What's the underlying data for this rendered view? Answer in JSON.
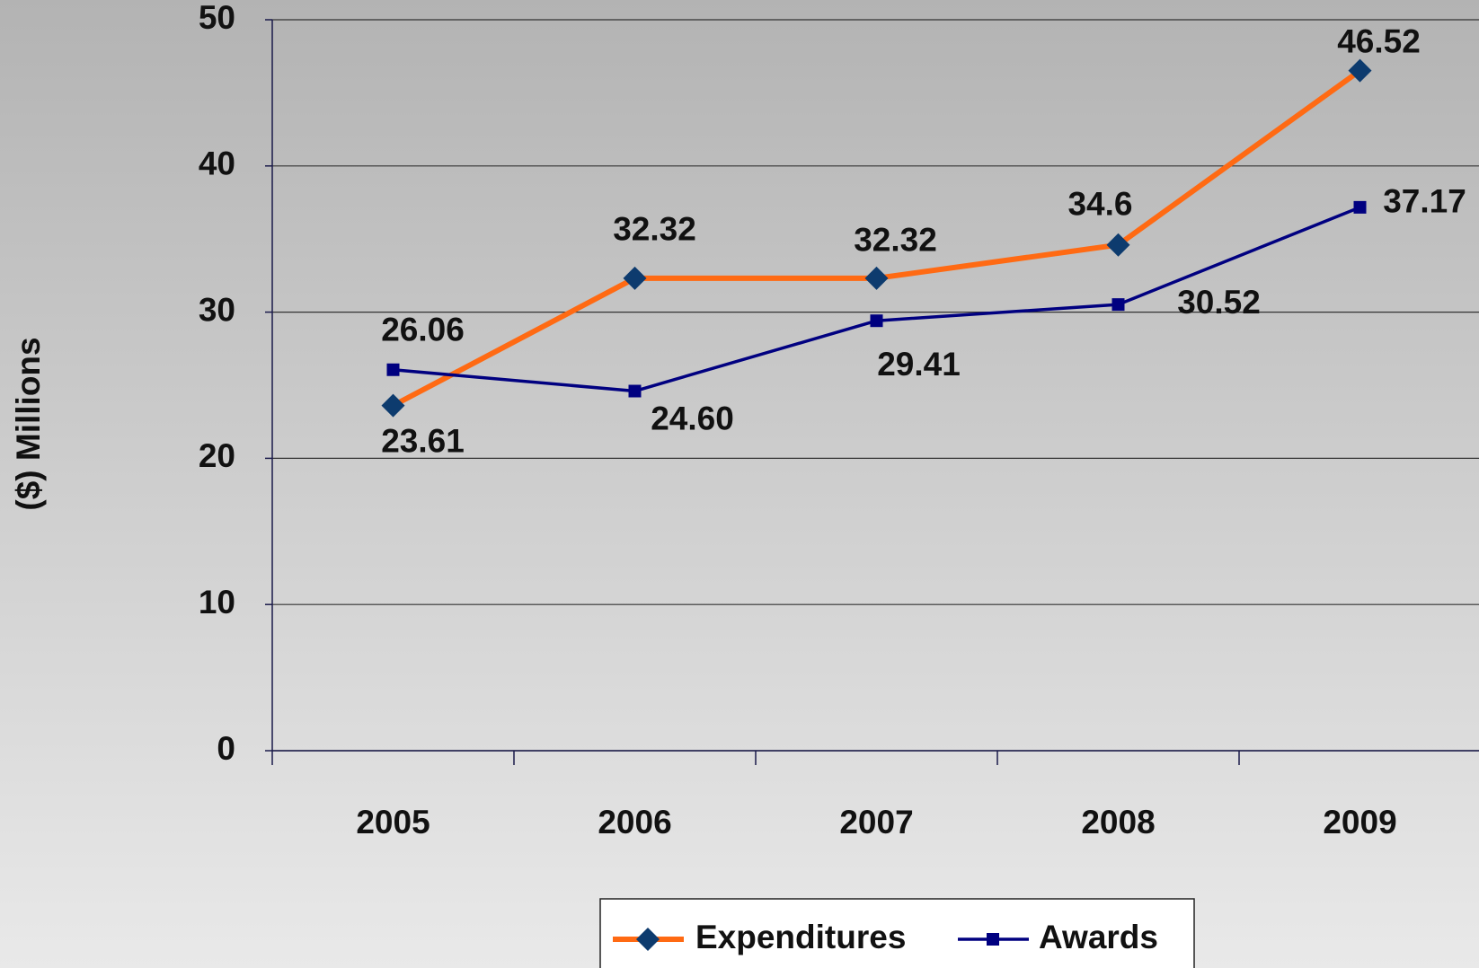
{
  "chart_data": {
    "type": "line",
    "y_label": "($) Millions",
    "categories": [
      "2005",
      "2006",
      "2007",
      "2008",
      "2009"
    ],
    "series": [
      {
        "name": "Expenditures",
        "color": "#ff6a13",
        "marker_color": "#0d3b6e",
        "marker": "diamond",
        "values": [
          23.61,
          32.32,
          32.32,
          34.6,
          46.52
        ],
        "value_labels": [
          "23.61",
          "32.32",
          "32.32",
          "34.6",
          "46.52"
        ]
      },
      {
        "name": "Awards",
        "color": "#000080",
        "marker_color": "#000080",
        "marker": "square",
        "values": [
          26.06,
          24.6,
          29.41,
          30.52,
          37.17
        ],
        "value_labels": [
          "26.06",
          "24.60",
          "29.41",
          "30.52",
          "37.17"
        ]
      }
    ],
    "ylim": [
      0,
      50
    ],
    "yticks": [
      0,
      10,
      20,
      30,
      40,
      50
    ],
    "grid": true,
    "legend": "bottom"
  }
}
